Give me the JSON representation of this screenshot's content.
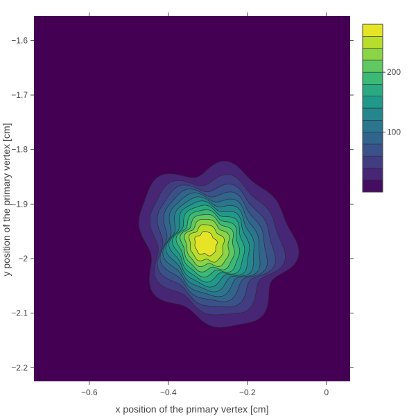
{
  "chart_data": {
    "type": "contour",
    "xlabel": "x position of the primary vertex [cm]",
    "ylabel": "y position of the primary vertex [cm]",
    "xlim": [
      -0.74,
      0.06
    ],
    "ylim": [
      -2.225,
      -1.555
    ],
    "x_ticks": [
      -0.6,
      -0.4,
      -0.2,
      0
    ],
    "x_tick_labels": [
      "−0.6",
      "−0.4",
      "−0.2",
      "0"
    ],
    "y_ticks": [
      -2.2,
      -2.1,
      -2.0,
      -1.9,
      -1.8,
      -1.7,
      -1.6
    ],
    "y_tick_labels": [
      "−2.2",
      "−2.1",
      "−2",
      "−1.9",
      "−1.8",
      "−1.7",
      "−1.6"
    ],
    "colorscale": "Viridis",
    "z_range": [
      0,
      280
    ],
    "contour_levels": [
      20,
      40,
      60,
      80,
      100,
      120,
      140,
      160,
      180,
      200,
      220,
      240,
      260
    ],
    "peak": {
      "x": -0.31,
      "y": -1.973,
      "z": 275
    },
    "colorbar": {
      "ticks": [
        100,
        200
      ],
      "tick_labels": [
        "100",
        "200"
      ]
    },
    "grid": false,
    "background_color": "#440154"
  }
}
